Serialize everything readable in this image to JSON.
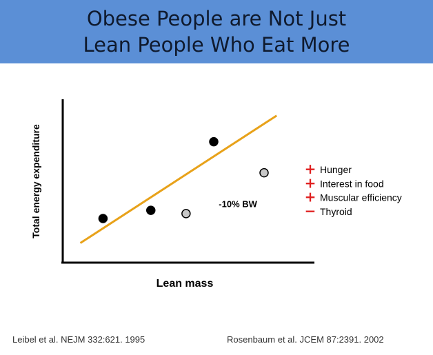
{
  "header": {
    "title_line1": "Obese People are Not Just",
    "title_line2": "Lean People Who Eat More",
    "background": "#5b8fd6"
  },
  "chart_data": {
    "type": "scatter",
    "xlabel": "Lean mass",
    "ylabel": "Total energy expenditure",
    "xlim": [
      0,
      100
    ],
    "ylim": [
      0,
      100
    ],
    "grid": false,
    "series": [
      {
        "name": "",
        "color": "#000000",
        "points": [
          {
            "x": 16,
            "y": 27
          },
          {
            "x": 35,
            "y": 32
          },
          {
            "x": 60,
            "y": 74
          }
        ]
      },
      {
        "name": "",
        "color": "#c8c8c8",
        "points": [
          {
            "x": 49,
            "y": 30
          },
          {
            "x": 80,
            "y": 55
          }
        ]
      }
    ],
    "trend_line": {
      "color": "#e8a21a",
      "from": {
        "x": 7,
        "y": 12
      },
      "to": {
        "x": 85,
        "y": 90
      }
    },
    "annotations": [
      {
        "text": "-10% BW",
        "x": 62,
        "y": 34
      }
    ]
  },
  "legend": {
    "items": [
      {
        "sign": "+",
        "label": "Hunger"
      },
      {
        "sign": "+",
        "label": "Interest in food"
      },
      {
        "sign": "+",
        "label": "Muscular efficiency"
      },
      {
        "sign": "−",
        "label": "Thyroid"
      }
    ],
    "sign_color": "#e02020"
  },
  "citations": {
    "left": "Leibel et al. NEJM 332:621. 1995",
    "right": "Rosenbaum et al. JCEM 87:2391. 2002"
  }
}
